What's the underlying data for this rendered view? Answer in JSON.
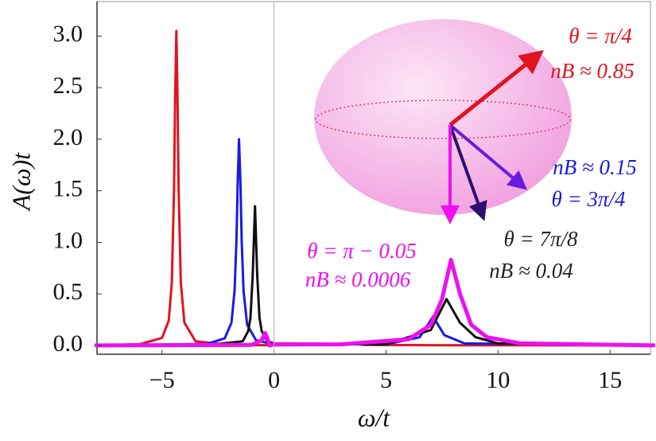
{
  "chart_data": {
    "type": "line",
    "x_label": "ω/t",
    "y_label": "A(ω)t",
    "xlim": [
      -7.9,
      16.8
    ],
    "ylim": [
      -0.09,
      3.35
    ],
    "xticks": [
      {
        "value": -5,
        "label": "−5"
      },
      0,
      5,
      10,
      15
    ],
    "yticks": [
      {
        "value": 0,
        "label": "0.0"
      },
      {
        "value": 0.5,
        "label": "0.5"
      },
      {
        "value": 1,
        "label": "1.0"
      },
      {
        "value": 1.5,
        "label": "1.5"
      },
      {
        "value": 2,
        "label": "2.0"
      },
      {
        "value": 2.5,
        "label": "2.5"
      },
      {
        "value": 3,
        "label": "3.0"
      }
    ],
    "zero_line": true,
    "series": [
      {
        "color": "#e0141e",
        "x": [
          -8,
          -6,
          -5,
          -4.7,
          -4.56,
          -4.46,
          -4.41,
          -4.36,
          -4.31,
          -4.26,
          -4.16,
          -4.0,
          -3.5,
          -2,
          0,
          3,
          3.6,
          4,
          8,
          17
        ],
        "values": [
          0.002,
          0.011,
          0.072,
          0.24,
          0.61,
          1.53,
          2.44,
          3.05,
          2.44,
          1.53,
          0.61,
          0.22,
          0.04,
          0.005,
          0.002,
          0.005,
          0.02,
          0.005,
          0.002,
          0
        ]
      },
      {
        "color": "#1a1ae0",
        "x": [
          -8,
          -3,
          -2.2,
          -1.9,
          -1.76,
          -1.68,
          -1.62,
          -1.56,
          -1.5,
          -1.44,
          -1.36,
          -1.2,
          -0.8,
          0,
          5,
          6.5,
          7.1,
          7.6,
          8.5,
          17
        ],
        "values": [
          0,
          0.014,
          0.068,
          0.22,
          0.53,
          1.0,
          1.6,
          2.0,
          1.6,
          1.0,
          0.53,
          0.2,
          0.05,
          0.01,
          0.01,
          0.08,
          0.28,
          0.1,
          0.02,
          0
        ]
      },
      {
        "color": "#111111",
        "x": [
          -8,
          -3,
          -1.4,
          -1.15,
          -1.05,
          -0.95,
          -0.85,
          -0.75,
          -0.65,
          -0.55,
          -0.3,
          0,
          5,
          7,
          7.7,
          8.3,
          9,
          10,
          17
        ],
        "values": [
          0,
          0.003,
          0.04,
          0.14,
          0.27,
          0.68,
          1.35,
          0.68,
          0.27,
          0.14,
          0.04,
          0.02,
          0.01,
          0.15,
          0.45,
          0.22,
          0.08,
          0.02,
          0
        ]
      },
      {
        "color": "#ee10ee",
        "x": [
          -8,
          -1,
          -0.55,
          -0.4,
          -0.3,
          -0.2,
          0,
          3,
          6,
          7,
          7.5,
          7.9,
          8.3,
          8.8,
          9.5,
          11,
          17
        ],
        "values": [
          0,
          0.005,
          0.05,
          0.12,
          0.07,
          0,
          0.01,
          0.01,
          0.06,
          0.2,
          0.45,
          0.83,
          0.5,
          0.2,
          0.08,
          0.02,
          0
        ]
      }
    ],
    "annotations": [
      {
        "text": "θ = π/4",
        "color": "#e0141e"
      },
      {
        "text": "nB ≈ 0.85",
        "color": "#e0141e"
      },
      {
        "text": "nB ≈ 0.15",
        "color": "#1a1ae0"
      },
      {
        "text": "θ = 3π/4",
        "color": "#1a1ae0"
      },
      {
        "text": "θ = 7π/8",
        "color": "#222222"
      },
      {
        "text": "nB ≈ 0.04",
        "color": "#222222"
      },
      {
        "text": "θ = π − 0.05",
        "color": "#ee10ee"
      },
      {
        "text": "nB ≈ 0.0006",
        "color": "#ee10ee"
      }
    ]
  }
}
